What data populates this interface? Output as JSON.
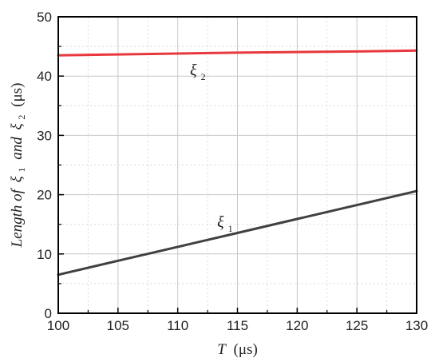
{
  "chart_data": {
    "type": "line",
    "x": [
      100,
      105,
      110,
      115,
      120,
      125,
      130
    ],
    "series": [
      {
        "name": "ξ2",
        "color": "#e8383d",
        "values": [
          43.5,
          43.65,
          43.8,
          43.95,
          44.05,
          44.15,
          44.3
        ]
      },
      {
        "name": "ξ1",
        "color": "#404040",
        "values": [
          6.5,
          8.85,
          11.2,
          13.55,
          15.9,
          18.25,
          20.6
        ]
      }
    ],
    "xlim": [
      100,
      130
    ],
    "ylim": [
      0,
      50
    ],
    "xticks": [
      "100",
      "105",
      "110",
      "115",
      "120",
      "125",
      "130"
    ],
    "yticks": [
      "0",
      "10",
      "20",
      "30",
      "40",
      "50"
    ],
    "xlabel": {
      "symbol": "T",
      "unit": "(μs)"
    },
    "ylabel": {
      "prefix": "Length of",
      "sym1": "ξ",
      "sub1": "1",
      "conj": "and",
      "sym2": "ξ",
      "sub2": "2",
      "unit": "(μs)"
    },
    "annotations": [
      {
        "symbol": "ξ",
        "sub": "2"
      },
      {
        "symbol": "ξ",
        "sub": "1"
      }
    ],
    "grid": true
  }
}
